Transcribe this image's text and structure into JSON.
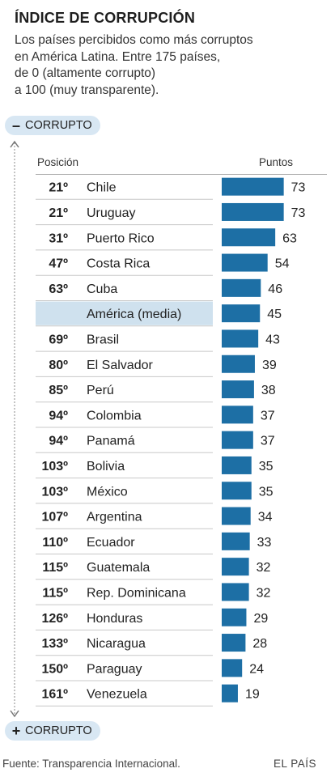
{
  "header": {
    "title": "ÍNDICE DE CORRUPCIÓN",
    "subtitle_lines": [
      "Los países percibidos como más corruptos",
      "en América Latina. Entre 175 países,",
      "de 0 (altamente corrupto)",
      "a 100 (muy transparente)."
    ]
  },
  "legend": {
    "top_sign": "–",
    "top_label": "CORRUPTO",
    "bottom_sign": "+",
    "bottom_label": "CORRUPTO"
  },
  "columns": {
    "position": "Posición",
    "points": "Puntos"
  },
  "colors": {
    "bar": "#1d6fa5",
    "highlight_row": "#cfe1ee",
    "pill": "#d8e7f3"
  },
  "footer": {
    "source": "Fuente: Transparencia Internacional.",
    "brand": "EL PAÍS"
  },
  "chart_data": {
    "type": "bar",
    "orientation": "horizontal",
    "title": "ÍNDICE DE CORRUPCIÓN",
    "xlim": [
      0,
      100
    ],
    "rows": [
      {
        "rank": "21º",
        "country": "Chile",
        "value": 73
      },
      {
        "rank": "21º",
        "country": "Uruguay",
        "value": 73
      },
      {
        "rank": "31º",
        "country": "Puerto Rico",
        "value": 63
      },
      {
        "rank": "47º",
        "country": "Costa Rica",
        "value": 54
      },
      {
        "rank": "63º",
        "country": "Cuba",
        "value": 46
      },
      {
        "rank": "",
        "country": "América (media)",
        "value": 45,
        "highlight": true
      },
      {
        "rank": "69º",
        "country": "Brasil",
        "value": 43
      },
      {
        "rank": "80º",
        "country": "El Salvador",
        "value": 39
      },
      {
        "rank": "85º",
        "country": "Perú",
        "value": 38
      },
      {
        "rank": "94º",
        "country": "Colombia",
        "value": 37
      },
      {
        "rank": "94º",
        "country": "Panamá",
        "value": 37
      },
      {
        "rank": "103º",
        "country": "Bolivia",
        "value": 35
      },
      {
        "rank": "103º",
        "country": "México",
        "value": 35
      },
      {
        "rank": "107º",
        "country": "Argentina",
        "value": 34
      },
      {
        "rank": "110º",
        "country": "Ecuador",
        "value": 33
      },
      {
        "rank": "115º",
        "country": "Guatemala",
        "value": 32
      },
      {
        "rank": "115º",
        "country": "Rep. Dominicana",
        "value": 32
      },
      {
        "rank": "126º",
        "country": "Honduras",
        "value": 29
      },
      {
        "rank": "133º",
        "country": "Nicaragua",
        "value": 28
      },
      {
        "rank": "150º",
        "country": "Paraguay",
        "value": 24
      },
      {
        "rank": "161º",
        "country": "Venezuela",
        "value": 19
      }
    ]
  }
}
